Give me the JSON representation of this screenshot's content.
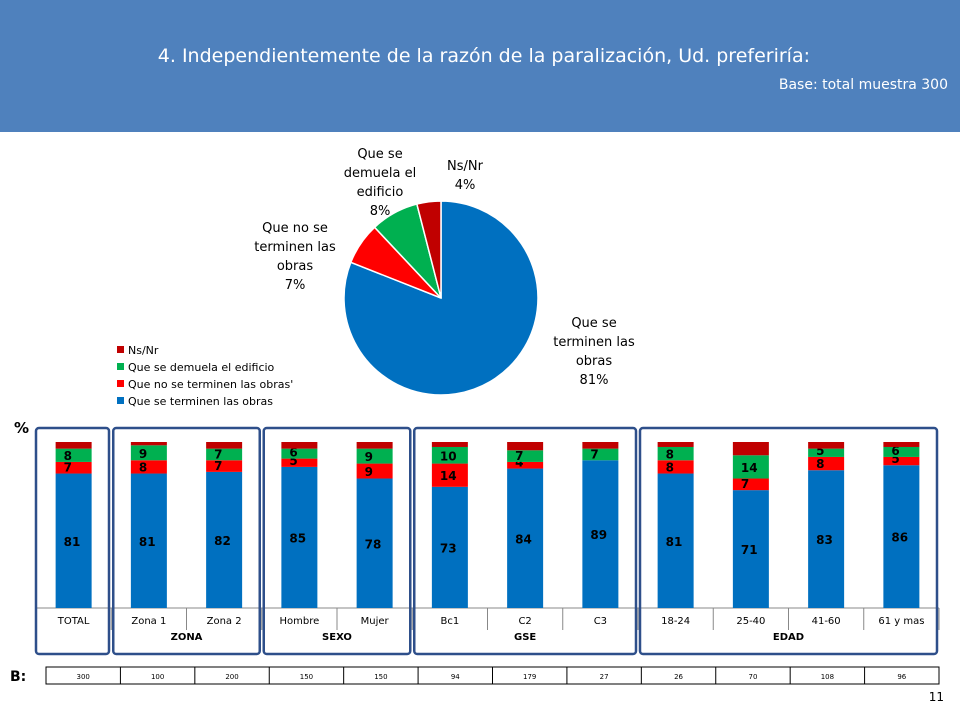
{
  "header": {
    "title": "4. Independientemente de la razón de la paralización, Ud. preferiría:",
    "base": "Base:  total muestra 300"
  },
  "colors": {
    "header_bg": "#4f81bd",
    "blue": "#0070c0",
    "red": "#ff0000",
    "green": "#00b050",
    "darkred": "#c00000",
    "frame": "#2e4f8a"
  },
  "chart_data": [
    {
      "type": "pie",
      "slices": [
        {
          "label": [
            "Que se",
            "terminen las",
            "obras"
          ],
          "value": 81,
          "pct_label": "81%",
          "color": "#0070c0"
        },
        {
          "label": [
            "Que no se",
            "terminen las",
            "obras"
          ],
          "value": 7,
          "pct_label": "7%",
          "color": "#ff0000"
        },
        {
          "label": [
            "Que se",
            "demuela el",
            "edificio"
          ],
          "value": 8,
          "pct_label": "8%",
          "color": "#00b050"
        },
        {
          "label": [
            "Ns/Nr"
          ],
          "value": 4,
          "pct_label": "4%",
          "color": "#c00000"
        }
      ],
      "legend": [
        {
          "label": "Ns/Nr",
          "color": "#c00000"
        },
        {
          "label": "Que se demuela el edificio",
          "color": "#00b050"
        },
        {
          "label": "Que no se terminen las obras'",
          "color": "#ff0000"
        },
        {
          "label": "Que se terminen las obras",
          "color": "#0070c0"
        }
      ],
      "legend_position": "left"
    },
    {
      "type": "bar",
      "stacked": true,
      "ylabel": "%",
      "ylim": [
        0,
        100
      ],
      "categories": [
        "TOTAL",
        "Zona 1",
        "Zona 2",
        "Hombre",
        "Mujer",
        "Bc1",
        "C2",
        "C3",
        "18-24",
        "25-40",
        "41-60",
        "61 y mas"
      ],
      "series": [
        {
          "name": "Que se terminen las obras",
          "color": "#0070c0",
          "values": [
            81,
            81,
            82,
            85,
            78,
            73,
            84,
            89,
            81,
            71,
            83,
            86
          ]
        },
        {
          "name": "Que no se terminen las obras'",
          "color": "#ff0000",
          "values": [
            7,
            8,
            7,
            5,
            9,
            14,
            4,
            null,
            8,
            7,
            8,
            5
          ]
        },
        {
          "name": "Que se demuela el edificio",
          "color": "#00b050",
          "values": [
            8,
            9,
            7,
            6,
            9,
            10,
            7,
            7,
            8,
            14,
            5,
            6
          ]
        },
        {
          "name": "Ns/Nr",
          "color": "#c00000",
          "values": [
            4,
            2,
            4,
            4,
            4,
            3,
            5,
            4,
            3,
            8,
            4,
            3
          ]
        }
      ],
      "groups": [
        {
          "label": "ZONA",
          "from": 1,
          "to": 2
        },
        {
          "label": "SEXO",
          "from": 3,
          "to": 4
        },
        {
          "label": "GSE",
          "from": 5,
          "to": 7
        },
        {
          "label": "EDAD",
          "from": 8,
          "to": 11
        }
      ]
    }
  ],
  "base_row": {
    "label": "B:",
    "values": [
      "300",
      "100",
      "200",
      "150",
      "150",
      "94",
      "179",
      "27",
      "26",
      "70",
      "108",
      "96"
    ]
  },
  "page_number": "11"
}
